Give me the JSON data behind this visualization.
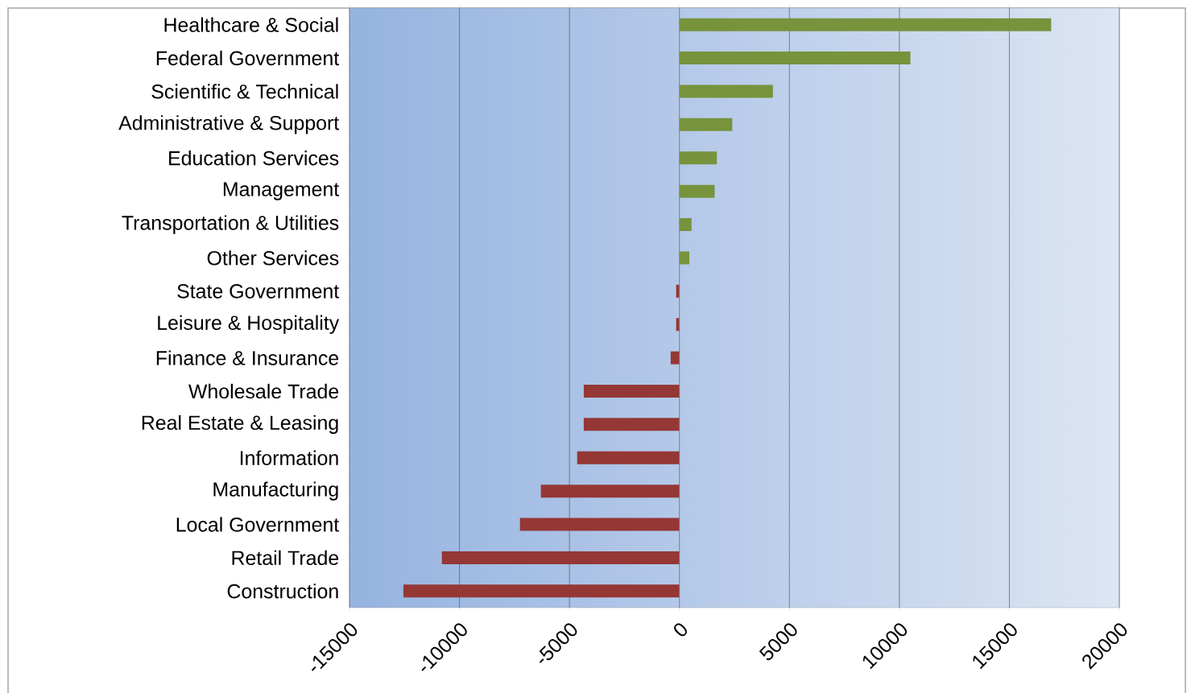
{
  "chart_data": {
    "type": "bar",
    "orientation": "horizontal",
    "categories": [
      "Healthcare & Social",
      "Federal Government",
      "Scientific & Technical",
      "Administrative & Support",
      "Education Services",
      "Management",
      "Transportation & Utilities",
      "Other Services",
      "State Government",
      "Leisure & Hospitality",
      "Finance & Insurance",
      "Wholesale Trade",
      "Real Estate & Leasing",
      "Information",
      "Manufacturing",
      "Local Government",
      "Retail Trade",
      "Construction"
    ],
    "values": [
      16900,
      10500,
      4250,
      2400,
      1700,
      1600,
      550,
      450,
      -150,
      -150,
      -400,
      -4350,
      -4350,
      -4650,
      -6300,
      -7250,
      -10800,
      -12550
    ],
    "colors": [
      "#77933c",
      "#77933c",
      "#77933c",
      "#77933c",
      "#77933c",
      "#77933c",
      "#77933c",
      "#77933c",
      "#953735",
      "#953735",
      "#953735",
      "#953735",
      "#953735",
      "#953735",
      "#953735",
      "#953735",
      "#953735",
      "#953735"
    ],
    "xlim": [
      -15000,
      20000
    ],
    "xticks": [
      -15000,
      -10000,
      -5000,
      0,
      5000,
      10000,
      15000,
      20000
    ],
    "grid": "x"
  }
}
